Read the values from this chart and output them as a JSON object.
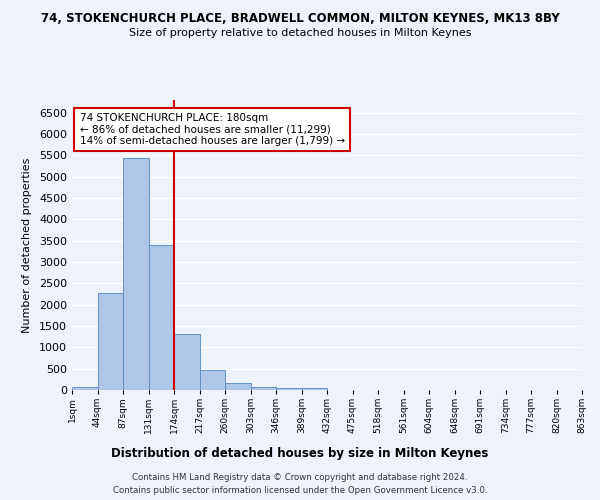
{
  "title": "74, STOKENCHURCH PLACE, BRADWELL COMMON, MILTON KEYNES, MK13 8BY",
  "subtitle": "Size of property relative to detached houses in Milton Keynes",
  "xlabel": "Distribution of detached houses by size in Milton Keynes",
  "ylabel": "Number of detached properties",
  "bar_values": [
    75,
    2280,
    5450,
    3400,
    1320,
    480,
    165,
    80,
    55,
    45,
    0,
    0,
    0,
    0,
    0,
    0,
    0,
    0,
    0,
    0
  ],
  "tick_labels": [
    "1sqm",
    "44sqm",
    "87sqm",
    "131sqm",
    "174sqm",
    "217sqm",
    "260sqm",
    "303sqm",
    "346sqm",
    "389sqm",
    "432sqm",
    "475sqm",
    "518sqm",
    "561sqm",
    "604sqm",
    "648sqm",
    "691sqm",
    "734sqm",
    "777sqm",
    "820sqm",
    "863sqm"
  ],
  "bar_color": "#aec6e8",
  "bar_edge_color": "#5588bb",
  "vline_x": 4,
  "vline_color": "#cc0000",
  "ylim": [
    0,
    6800
  ],
  "yticks": [
    0,
    500,
    1000,
    1500,
    2000,
    2500,
    3000,
    3500,
    4000,
    4500,
    5000,
    5500,
    6000,
    6500
  ],
  "annotation_text": "74 STOKENCHURCH PLACE: 180sqm\n← 86% of detached houses are smaller (11,299)\n14% of semi-detached houses are larger (1,799) →",
  "annotation_box_color": "#cc0000",
  "footer_line1": "Contains HM Land Registry data © Crown copyright and database right 2024.",
  "footer_line2": "Contains public sector information licensed under the Open Government Licence v3.0.",
  "bg_color": "#eef2fb",
  "grid_color": "#ffffff"
}
